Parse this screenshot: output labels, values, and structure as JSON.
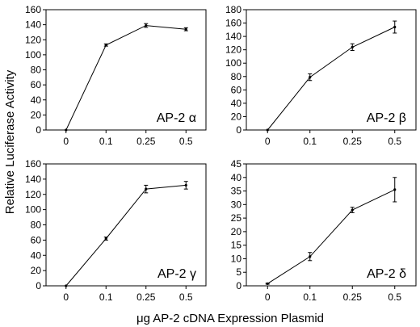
{
  "ylabel": "Relative Luciferase Activity",
  "xlabel": "μg AP-2 cDNA Expression Plasmid",
  "chart_data": [
    {
      "type": "line",
      "label": "AP-2 α",
      "categories": [
        "0",
        "0.1",
        "0.25",
        "0.5"
      ],
      "values": [
        0,
        113,
        139,
        134
      ],
      "errors": [
        0,
        1.5,
        2.5,
        2
      ],
      "ylim": [
        0,
        160
      ],
      "yticks": [
        "0",
        "20",
        "40",
        "60",
        "80",
        "100",
        "120",
        "140",
        "160"
      ]
    },
    {
      "type": "line",
      "label": "AP-2 β",
      "categories": [
        "0",
        "0.1",
        "0.25",
        "0.5"
      ],
      "values": [
        0,
        79,
        124,
        154
      ],
      "errors": [
        0,
        5,
        5,
        9
      ],
      "ylim": [
        0,
        180
      ],
      "yticks": [
        "0",
        "20",
        "40",
        "60",
        "80",
        "100",
        "120",
        "140",
        "160",
        "180"
      ]
    },
    {
      "type": "line",
      "label": "AP-2 γ",
      "categories": [
        "0",
        "0.1",
        "0.25",
        "0.5"
      ],
      "values": [
        0,
        62,
        127,
        132
      ],
      "errors": [
        0,
        2,
        5,
        5
      ],
      "ylim": [
        0,
        160
      ],
      "yticks": [
        "0",
        "20",
        "40",
        "60",
        "80",
        "100",
        "120",
        "140",
        "160"
      ]
    },
    {
      "type": "line",
      "label": "AP-2 δ",
      "categories": [
        "0",
        "0.1",
        "0.25",
        "0.5"
      ],
      "values": [
        0.8,
        10.8,
        28,
        35.5
      ],
      "errors": [
        0.2,
        1.5,
        1,
        4.5
      ],
      "ylim": [
        0,
        45
      ],
      "yticks": [
        "0",
        "5",
        "10",
        "15",
        "20",
        "25",
        "30",
        "35",
        "40",
        "45"
      ]
    }
  ]
}
